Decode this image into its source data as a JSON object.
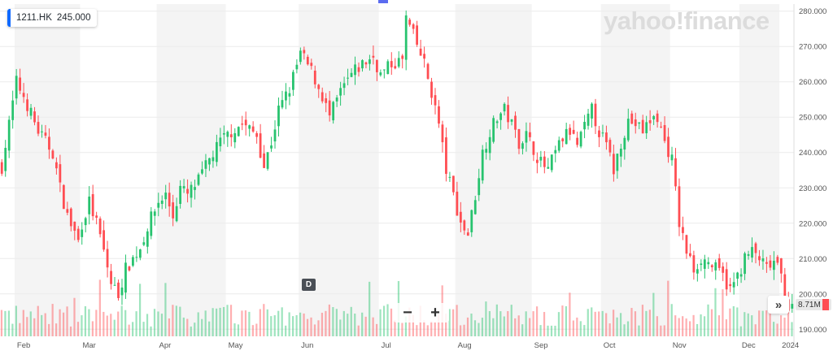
{
  "ticker": {
    "symbol": "1211.HK",
    "price": "245.000"
  },
  "brand": "yahoo!finance",
  "event_badge": "D",
  "volume_label": "8.71M",
  "controls": {
    "zoom_out": "−",
    "zoom_in": "+",
    "next": "»"
  },
  "colors": {
    "up": "#27c36e",
    "down": "#ff4d52",
    "band": "#f4f4f4",
    "axis_text": "#555555",
    "accent": "#0f69ff"
  },
  "chart_data": {
    "type": "candlestick",
    "ylim": [
      188,
      282
    ],
    "yticks": [
      "190.000",
      "200.000",
      "210.000",
      "220.000",
      "230.000",
      "240.000",
      "250.000",
      "260.000",
      "270.000",
      "280.000"
    ],
    "xtick_labels": [
      "Feb",
      "Mar",
      "Apr",
      "May",
      "Jun",
      "Jul",
      "Aug",
      "Sep",
      "Oct",
      "Nov",
      "Dec",
      "2024"
    ],
    "close_path": [
      [
        0,
        236
      ],
      [
        4,
        260
      ],
      [
        6,
        256
      ],
      [
        10,
        246
      ],
      [
        14,
        240
      ],
      [
        16,
        230
      ],
      [
        18,
        222
      ],
      [
        21,
        215
      ],
      [
        22,
        220
      ],
      [
        24,
        226
      ],
      [
        26,
        220
      ],
      [
        28,
        212
      ],
      [
        30,
        203
      ],
      [
        32,
        200
      ],
      [
        34,
        207
      ],
      [
        36,
        210
      ],
      [
        38,
        213
      ],
      [
        40,
        219
      ],
      [
        43,
        226
      ],
      [
        45,
        228
      ],
      [
        47,
        222
      ],
      [
        49,
        230
      ],
      [
        51,
        228
      ],
      [
        54,
        232
      ],
      [
        57,
        238
      ],
      [
        60,
        243
      ],
      [
        63,
        246
      ],
      [
        66,
        248
      ],
      [
        70,
        245
      ],
      [
        72,
        236
      ],
      [
        74,
        243
      ],
      [
        76,
        252
      ],
      [
        79,
        258
      ],
      [
        82,
        268
      ],
      [
        85,
        263
      ],
      [
        88,
        256
      ],
      [
        90,
        250
      ],
      [
        93,
        257
      ],
      [
        96,
        262
      ],
      [
        99,
        265
      ],
      [
        102,
        267
      ],
      [
        104,
        262
      ],
      [
        107,
        265
      ],
      [
        110,
        266
      ],
      [
        111,
        278
      ],
      [
        113,
        273
      ],
      [
        116,
        265
      ],
      [
        118,
        257
      ],
      [
        120,
        248
      ],
      [
        122,
        235
      ],
      [
        124,
        228
      ],
      [
        126,
        220
      ],
      [
        128,
        217
      ],
      [
        130,
        228
      ],
      [
        132,
        240
      ],
      [
        134,
        246
      ],
      [
        136,
        250
      ],
      [
        138,
        252
      ],
      [
        140,
        248
      ],
      [
        142,
        243
      ],
      [
        144,
        245
      ],
      [
        146,
        241
      ],
      [
        148,
        237
      ],
      [
        150,
        235
      ],
      [
        152,
        240
      ],
      [
        154,
        244
      ],
      [
        156,
        246
      ],
      [
        158,
        242
      ],
      [
        160,
        247
      ],
      [
        162,
        252
      ],
      [
        164,
        246
      ],
      [
        166,
        242
      ],
      [
        168,
        235
      ],
      [
        170,
        243
      ],
      [
        172,
        249
      ],
      [
        174,
        248
      ],
      [
        176,
        246
      ],
      [
        178,
        249
      ],
      [
        180,
        250
      ],
      [
        182,
        243
      ],
      [
        184,
        238
      ],
      [
        186,
        220
      ],
      [
        188,
        212
      ],
      [
        190,
        207
      ],
      [
        192,
        210
      ],
      [
        194,
        209
      ],
      [
        196,
        207
      ],
      [
        198,
        205
      ],
      [
        200,
        201
      ],
      [
        202,
        205
      ],
      [
        204,
        210
      ],
      [
        206,
        212
      ],
      [
        208,
        210
      ],
      [
        210,
        207
      ],
      [
        212,
        209
      ],
      [
        214,
        205
      ],
      [
        216,
        196
      ]
    ]
  }
}
